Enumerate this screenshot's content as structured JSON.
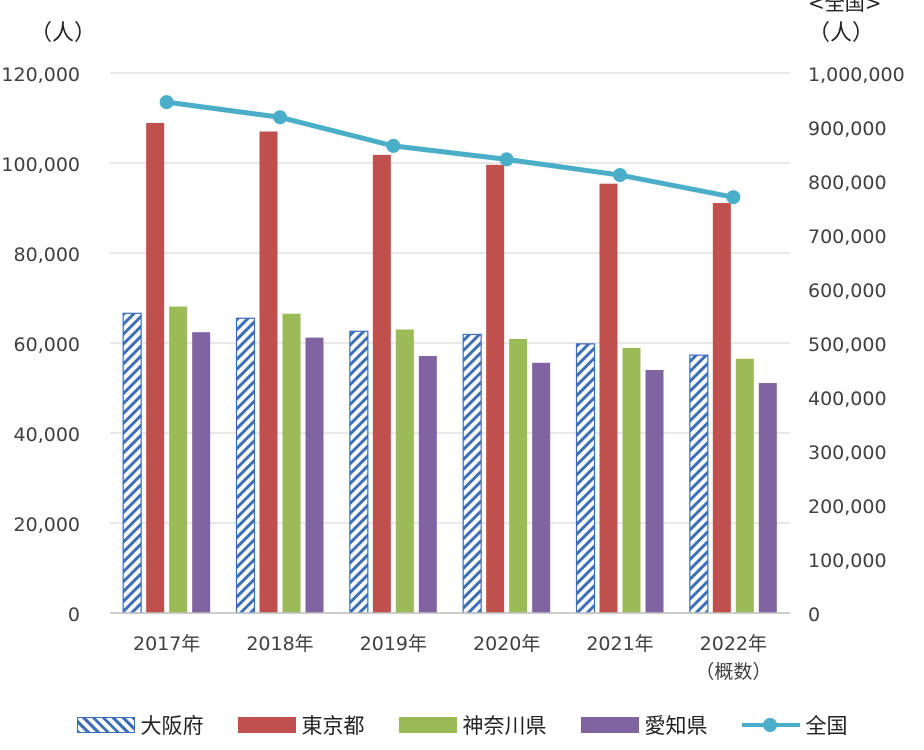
{
  "chart_data": {
    "type": "bar",
    "categories": [
      "2017年",
      "2018年",
      "2019年",
      "2020年",
      "2021年",
      "2022年\n（概数）"
    ],
    "y_unit_left": "（人）",
    "y_unit_right": "（人）",
    "y_right_title": "<全国>",
    "ylim_left": [
      0,
      120000
    ],
    "ylim_right": [
      0,
      1000000
    ],
    "y_ticks_left": [
      "0",
      "20,000",
      "40,000",
      "60,000",
      "80,000",
      "100,000",
      "120,000"
    ],
    "y_ticks_right": [
      "0",
      "100,000",
      "200,000",
      "300,000",
      "400,000",
      "500,000",
      "600,000",
      "700,000",
      "800,000",
      "900,000",
      "1,000,000"
    ],
    "grid": true,
    "legend_position": "bottom",
    "series": [
      {
        "name": "大阪府",
        "type": "bar",
        "axis": "left",
        "pattern": "hatched",
        "color": "#3d6fb8",
        "values": [
          66600,
          65500,
          62600,
          61900,
          59800,
          57300
        ]
      },
      {
        "name": "東京都",
        "type": "bar",
        "axis": "left",
        "color": "#c0504d",
        "values": [
          108900,
          107000,
          101800,
          99600,
          95400,
          91100
        ]
      },
      {
        "name": "神奈川県",
        "type": "bar",
        "axis": "left",
        "color": "#9bbb59",
        "values": [
          68100,
          66500,
          63000,
          60900,
          58900,
          56500
        ]
      },
      {
        "name": "愛知県",
        "type": "bar",
        "axis": "left",
        "color": "#8064a2",
        "values": [
          62400,
          61200,
          57100,
          55600,
          54000,
          51100
        ]
      },
      {
        "name": "全国",
        "type": "line",
        "axis": "right",
        "color": "#4aaec8",
        "values": [
          946000,
          918000,
          865000,
          840000,
          811000,
          770000
        ]
      }
    ]
  }
}
